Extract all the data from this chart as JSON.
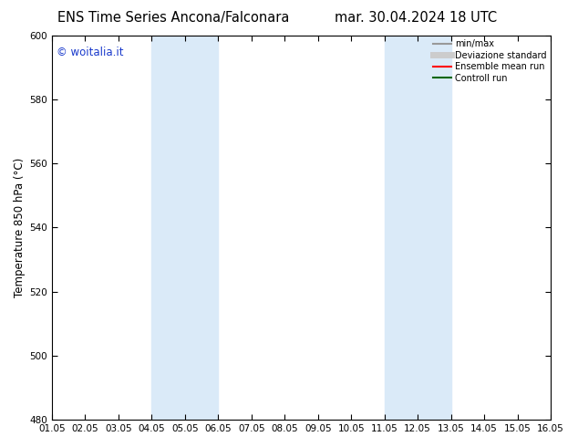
{
  "title_left": "ENS Time Series Ancona/Falconara",
  "title_right": "mar. 30.04.2024 18 UTC",
  "ylabel": "Temperature 850 hPa (°C)",
  "ylim": [
    480,
    600
  ],
  "yticks": [
    480,
    500,
    520,
    540,
    560,
    580,
    600
  ],
  "xlim": [
    0,
    15
  ],
  "xtick_labels": [
    "01.05",
    "02.05",
    "03.05",
    "04.05",
    "05.05",
    "06.05",
    "07.05",
    "08.05",
    "09.05",
    "10.05",
    "11.05",
    "12.05",
    "13.05",
    "14.05",
    "15.05",
    "16.05"
  ],
  "shaded_bands": [
    {
      "xmin": 3,
      "xmax": 5,
      "color": "#daeaf8"
    },
    {
      "xmin": 10,
      "xmax": 12,
      "color": "#daeaf8"
    }
  ],
  "watermark_text": "© woitalia.it",
  "watermark_color": "#1a3acc",
  "legend_items": [
    {
      "label": "min/max",
      "color": "#999999",
      "lw": 1.5
    },
    {
      "label": "Deviazione standard",
      "color": "#cccccc",
      "lw": 5
    },
    {
      "label": "Ensemble mean run",
      "color": "#ff0000",
      "lw": 1.5
    },
    {
      "label": "Controll run",
      "color": "#006600",
      "lw": 1.5
    }
  ],
  "bg_color": "#ffffff",
  "title_fontsize": 10.5,
  "tick_fontsize": 7.5,
  "ylabel_fontsize": 8.5
}
